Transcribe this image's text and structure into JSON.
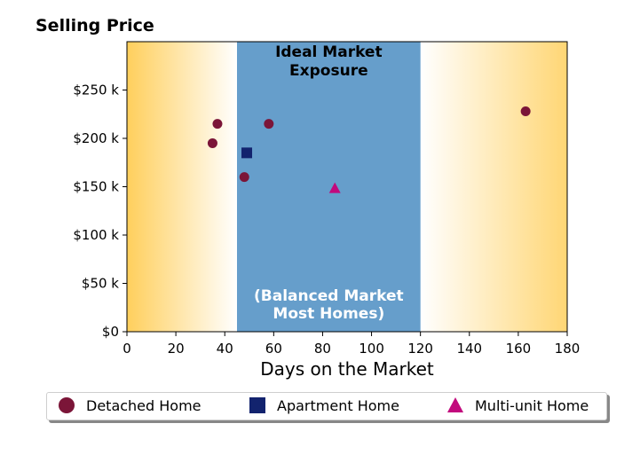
{
  "chart_data": {
    "type": "scatter",
    "title": "Selling Price",
    "xlabel": "Days on the Market",
    "ylabel": "",
    "xlim": [
      0,
      180
    ],
    "ylim": [
      0,
      300000
    ],
    "x_ticks": [
      0,
      20,
      40,
      60,
      80,
      100,
      120,
      140,
      160,
      180
    ],
    "x_tick_labels": [
      "0",
      "20",
      "40",
      "60",
      "80",
      "100",
      "120",
      "140",
      "160",
      "180"
    ],
    "y_ticks": [
      0,
      50000,
      100000,
      150000,
      200000,
      250000
    ],
    "y_tick_labels": [
      "$0",
      "$50 k",
      "$100 k",
      "$150 k",
      "$200 k",
      "$250 k"
    ],
    "grid": false,
    "legend_position": "bottom",
    "ideal_band": {
      "x_start": 45,
      "x_end": 120,
      "color": "#669ecb",
      "top_label_lines": [
        "Ideal Market",
        "Exposure"
      ],
      "bottom_label_lines": [
        "(Balanced Market",
        "Most Homes)"
      ]
    },
    "background_gradient_color": "#ffcf5c",
    "series": [
      {
        "name": "Detached Home",
        "marker": "circle",
        "color": "#7b1538",
        "points": [
          [
            37,
            215000
          ],
          [
            35,
            195000
          ],
          [
            48,
            160000
          ],
          [
            58,
            215000
          ],
          [
            163,
            228000
          ]
        ]
      },
      {
        "name": "Apartment Home",
        "marker": "square",
        "color": "#12236e",
        "points": [
          [
            49,
            185000
          ]
        ]
      },
      {
        "name": "Multi-unit Home",
        "marker": "triangle",
        "color": "#c2097d",
        "points": [
          [
            85,
            148000
          ]
        ]
      }
    ]
  }
}
